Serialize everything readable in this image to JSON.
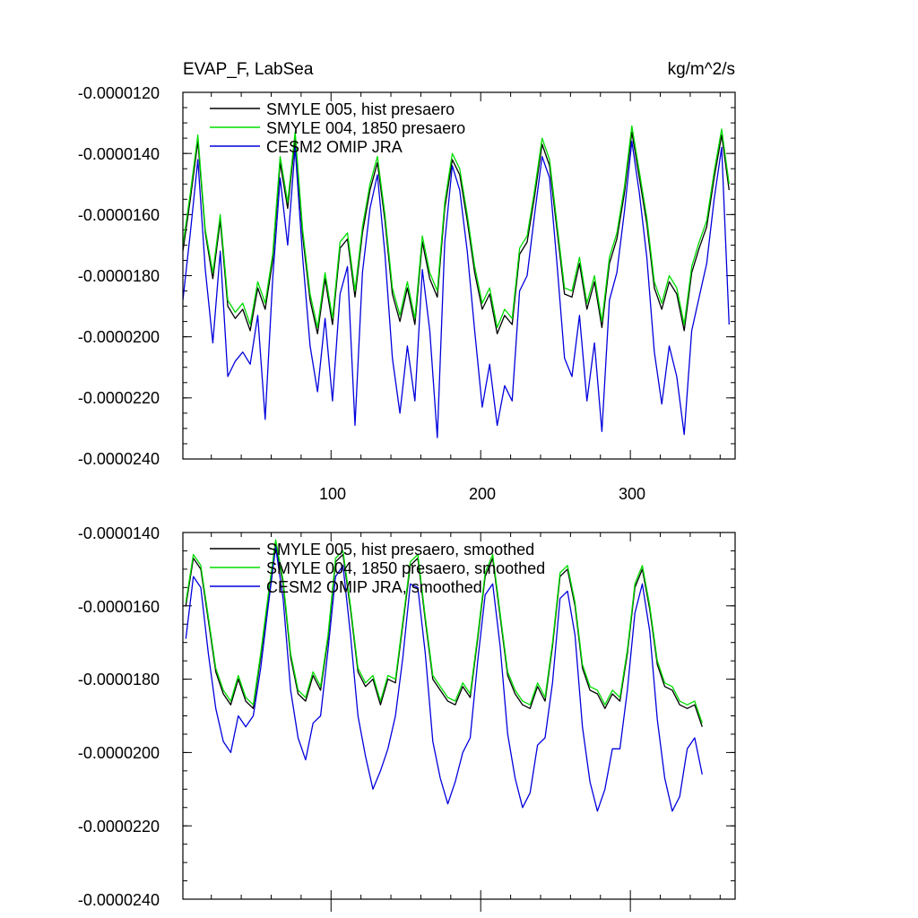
{
  "chart_data": [
    {
      "type": "line",
      "title_left": "EVAP_F, LabSea",
      "title_right": "kg/m^2/s",
      "xlim": [
        1,
        370
      ],
      "ylim": [
        -2.4e-05,
        -1.2e-05
      ],
      "x_ticks": [
        100,
        200,
        300
      ],
      "x_tick_labels": [
        "100",
        "200",
        "300"
      ],
      "y_ticks": [
        -1.2e-05,
        -1.4e-05,
        -1.6e-05,
        -1.8e-05,
        -2e-05,
        -2.2e-05,
        -2.4e-05
      ],
      "y_tick_labels": [
        "-0.0000120",
        "-0.0000140",
        "-0.0000160",
        "-0.0000180",
        "-0.0000200",
        "-0.0000220",
        "-0.0000240"
      ],
      "legend_position": "top-left",
      "series": [
        {
          "name": "SMYLE 005, hist presaero",
          "color": "#000000",
          "x_start": 1,
          "x_step": 5,
          "values": [
            -1.72e-05,
            -1.55e-05,
            -1.36e-05,
            -1.66e-05,
            -1.81e-05,
            -1.62e-05,
            -1.9e-05,
            -1.94e-05,
            -1.91e-05,
            -1.98e-05,
            -1.84e-05,
            -1.91e-05,
            -1.75e-05,
            -1.43e-05,
            -1.58e-05,
            -1.35e-05,
            -1.67e-05,
            -1.88e-05,
            -1.99e-05,
            -1.81e-05,
            -1.96e-05,
            -1.71e-05,
            -1.68e-05,
            -1.87e-05,
            -1.66e-05,
            -1.52e-05,
            -1.43e-05,
            -1.62e-05,
            -1.86e-05,
            -1.95e-05,
            -1.84e-05,
            -1.96e-05,
            -1.69e-05,
            -1.81e-05,
            -1.87e-05,
            -1.58e-05,
            -1.42e-05,
            -1.47e-05,
            -1.62e-05,
            -1.79e-05,
            -1.91e-05,
            -1.86e-05,
            -1.99e-05,
            -1.93e-05,
            -1.96e-05,
            -1.73e-05,
            -1.69e-05,
            -1.54e-05,
            -1.37e-05,
            -1.44e-05,
            -1.65e-05,
            -1.86e-05,
            -1.87e-05,
            -1.76e-05,
            -1.91e-05,
            -1.82e-05,
            -1.97e-05,
            -1.76e-05,
            -1.68e-05,
            -1.53e-05,
            -1.33e-05,
            -1.48e-05,
            -1.63e-05,
            -1.84e-05,
            -1.91e-05,
            -1.82e-05,
            -1.86e-05,
            -1.98e-05,
            -1.79e-05,
            -1.71e-05,
            -1.64e-05,
            -1.48e-05,
            -1.34e-05,
            -1.52e-05
          ]
        },
        {
          "name": "SMYLE 004, 1850 presaero",
          "color": "#00dd00",
          "x_start": 1,
          "x_step": 5,
          "values": [
            -1.7e-05,
            -1.53e-05,
            -1.34e-05,
            -1.65e-05,
            -1.79e-05,
            -1.6e-05,
            -1.88e-05,
            -1.92e-05,
            -1.89e-05,
            -1.96e-05,
            -1.82e-05,
            -1.89e-05,
            -1.73e-05,
            -1.41e-05,
            -1.56e-05,
            -1.33e-05,
            -1.65e-05,
            -1.86e-05,
            -1.97e-05,
            -1.79e-05,
            -1.94e-05,
            -1.69e-05,
            -1.66e-05,
            -1.85e-05,
            -1.64e-05,
            -1.5e-05,
            -1.41e-05,
            -1.6e-05,
            -1.84e-05,
            -1.93e-05,
            -1.82e-05,
            -1.94e-05,
            -1.67e-05,
            -1.79e-05,
            -1.85e-05,
            -1.56e-05,
            -1.4e-05,
            -1.45e-05,
            -1.6e-05,
            -1.77e-05,
            -1.89e-05,
            -1.84e-05,
            -1.97e-05,
            -1.91e-05,
            -1.94e-05,
            -1.71e-05,
            -1.67e-05,
            -1.52e-05,
            -1.35e-05,
            -1.42e-05,
            -1.63e-05,
            -1.84e-05,
            -1.85e-05,
            -1.74e-05,
            -1.89e-05,
            -1.8e-05,
            -1.95e-05,
            -1.74e-05,
            -1.66e-05,
            -1.51e-05,
            -1.31e-05,
            -1.46e-05,
            -1.61e-05,
            -1.82e-05,
            -1.89e-05,
            -1.8e-05,
            -1.84e-05,
            -1.96e-05,
            -1.77e-05,
            -1.69e-05,
            -1.62e-05,
            -1.46e-05,
            -1.32e-05,
            -1.5e-05
          ]
        },
        {
          "name": "CESM2 OMIP JRA",
          "color": "#0000dd",
          "x_start": 1,
          "x_step": 5,
          "values": [
            -1.88e-05,
            -1.66e-05,
            -1.42e-05,
            -1.78e-05,
            -2.02e-05,
            -1.72e-05,
            -2.13e-05,
            -2.08e-05,
            -2.05e-05,
            -2.09e-05,
            -1.93e-05,
            -2.27e-05,
            -1.81e-05,
            -1.48e-05,
            -1.7e-05,
            -1.38e-05,
            -1.74e-05,
            -2.03e-05,
            -2.18e-05,
            -1.94e-05,
            -2.21e-05,
            -1.86e-05,
            -1.77e-05,
            -2.29e-05,
            -1.79e-05,
            -1.58e-05,
            -1.47e-05,
            -1.73e-05,
            -2.07e-05,
            -2.25e-05,
            -2.03e-05,
            -2.21e-05,
            -1.78e-05,
            -1.98e-05,
            -2.33e-05,
            -1.69e-05,
            -1.44e-05,
            -1.52e-05,
            -1.72e-05,
            -1.98e-05,
            -2.23e-05,
            -2.09e-05,
            -2.29e-05,
            -2.16e-05,
            -2.21e-05,
            -1.85e-05,
            -1.8e-05,
            -1.6e-05,
            -1.41e-05,
            -1.48e-05,
            -1.76e-05,
            -2.07e-05,
            -2.13e-05,
            -1.93e-05,
            -2.21e-05,
            -2.02e-05,
            -2.31e-05,
            -1.88e-05,
            -1.79e-05,
            -1.59e-05,
            -1.36e-05,
            -1.53e-05,
            -1.74e-05,
            -2.05e-05,
            -2.22e-05,
            -2.03e-05,
            -2.13e-05,
            -2.32e-05,
            -1.98e-05,
            -1.87e-05,
            -1.76e-05,
            -1.55e-05,
            -1.38e-05,
            -1.96e-05
          ]
        }
      ]
    },
    {
      "type": "line",
      "xlim": [
        1,
        370
      ],
      "ylim": [
        -2.4e-05,
        -1.4e-05
      ],
      "x_ticks": [
        100,
        200,
        300
      ],
      "y_ticks": [
        -1.4e-05,
        -1.6e-05,
        -1.8e-05,
        -2e-05,
        -2.2e-05,
        -2.4e-05
      ],
      "y_tick_labels": [
        "-0.0000140",
        "-0.0000160",
        "-0.0000180",
        "-0.0000200",
        "-0.0000220",
        "-0.0000240"
      ],
      "legend_position": "top-left",
      "series": [
        {
          "name": "SMYLE 005, hist presaero, smoothed",
          "color": "#000000",
          "x_start": 3,
          "x_step": 5,
          "values": [
            -1.6e-05,
            -1.47e-05,
            -1.5e-05,
            -1.64e-05,
            -1.78e-05,
            -1.84e-05,
            -1.87e-05,
            -1.8e-05,
            -1.86e-05,
            -1.88e-05,
            -1.74e-05,
            -1.58e-05,
            -1.43e-05,
            -1.54e-05,
            -1.74e-05,
            -1.84e-05,
            -1.86e-05,
            -1.79e-05,
            -1.83e-05,
            -1.69e-05,
            -1.48e-05,
            -1.46e-05,
            -1.61e-05,
            -1.78e-05,
            -1.82e-05,
            -1.8e-05,
            -1.87e-05,
            -1.8e-05,
            -1.81e-05,
            -1.65e-05,
            -1.49e-05,
            -1.47e-05,
            -1.64e-05,
            -1.8e-05,
            -1.83e-05,
            -1.86e-05,
            -1.87e-05,
            -1.82e-05,
            -1.85e-05,
            -1.69e-05,
            -1.52e-05,
            -1.47e-05,
            -1.63e-05,
            -1.79e-05,
            -1.84e-05,
            -1.87e-05,
            -1.88e-05,
            -1.82e-05,
            -1.86e-05,
            -1.71e-05,
            -1.52e-05,
            -1.5e-05,
            -1.6e-05,
            -1.77e-05,
            -1.83e-05,
            -1.84e-05,
            -1.88e-05,
            -1.84e-05,
            -1.86e-05,
            -1.73e-05,
            -1.55e-05,
            -1.5e-05,
            -1.61e-05,
            -1.76e-05,
            -1.82e-05,
            -1.83e-05,
            -1.87e-05,
            -1.88e-05,
            -1.87e-05,
            -1.93e-05
          ]
        },
        {
          "name": "SMYLE 004, 1850 presaero, smoothed",
          "color": "#00dd00",
          "x_start": 3,
          "x_step": 5,
          "values": [
            -1.59e-05,
            -1.46e-05,
            -1.49e-05,
            -1.63e-05,
            -1.77e-05,
            -1.83e-05,
            -1.86e-05,
            -1.79e-05,
            -1.85e-05,
            -1.87e-05,
            -1.73e-05,
            -1.57e-05,
            -1.42e-05,
            -1.53e-05,
            -1.73e-05,
            -1.83e-05,
            -1.85e-05,
            -1.78e-05,
            -1.82e-05,
            -1.68e-05,
            -1.47e-05,
            -1.45e-05,
            -1.6e-05,
            -1.77e-05,
            -1.81e-05,
            -1.79e-05,
            -1.86e-05,
            -1.79e-05,
            -1.8e-05,
            -1.64e-05,
            -1.48e-05,
            -1.46e-05,
            -1.63e-05,
            -1.79e-05,
            -1.82e-05,
            -1.85e-05,
            -1.86e-05,
            -1.81e-05,
            -1.84e-05,
            -1.68e-05,
            -1.51e-05,
            -1.46e-05,
            -1.62e-05,
            -1.78e-05,
            -1.83e-05,
            -1.86e-05,
            -1.87e-05,
            -1.81e-05,
            -1.85e-05,
            -1.7e-05,
            -1.51e-05,
            -1.49e-05,
            -1.59e-05,
            -1.76e-05,
            -1.82e-05,
            -1.83e-05,
            -1.87e-05,
            -1.83e-05,
            -1.85e-05,
            -1.72e-05,
            -1.54e-05,
            -1.49e-05,
            -1.6e-05,
            -1.75e-05,
            -1.81e-05,
            -1.82e-05,
            -1.86e-05,
            -1.87e-05,
            -1.86e-05,
            -1.92e-05
          ]
        },
        {
          "name": "CESM2 OMIP JRA, smoothed",
          "color": "#0000dd",
          "x_start": 3,
          "x_step": 5,
          "values": [
            -1.69e-05,
            -1.52e-05,
            -1.55e-05,
            -1.73e-05,
            -1.88e-05,
            -1.97e-05,
            -2e-05,
            -1.9e-05,
            -1.93e-05,
            -1.9e-05,
            -1.77e-05,
            -1.6e-05,
            -1.44e-05,
            -1.58e-05,
            -1.83e-05,
            -1.96e-05,
            -2.02e-05,
            -1.92e-05,
            -1.9e-05,
            -1.72e-05,
            -1.52e-05,
            -1.49e-05,
            -1.68e-05,
            -1.9e-05,
            -2.01e-05,
            -2.1e-05,
            -2.05e-05,
            -1.99e-05,
            -1.9e-05,
            -1.74e-05,
            -1.54e-05,
            -1.55e-05,
            -1.73e-05,
            -1.97e-05,
            -2.07e-05,
            -2.14e-05,
            -2.08e-05,
            -2e-05,
            -1.96e-05,
            -1.75e-05,
            -1.57e-05,
            -1.54e-05,
            -1.71e-05,
            -1.95e-05,
            -2.07e-05,
            -2.15e-05,
            -2.11e-05,
            -1.98e-05,
            -1.96e-05,
            -1.81e-05,
            -1.58e-05,
            -1.56e-05,
            -1.68e-05,
            -1.93e-05,
            -2.08e-05,
            -2.16e-05,
            -2.1e-05,
            -1.99e-05,
            -1.99e-05,
            -1.83e-05,
            -1.62e-05,
            -1.54e-05,
            -1.67e-05,
            -1.91e-05,
            -2.07e-05,
            -2.16e-05,
            -2.12e-05,
            -1.99e-05,
            -1.96e-05,
            -2.06e-05
          ]
        }
      ]
    }
  ]
}
